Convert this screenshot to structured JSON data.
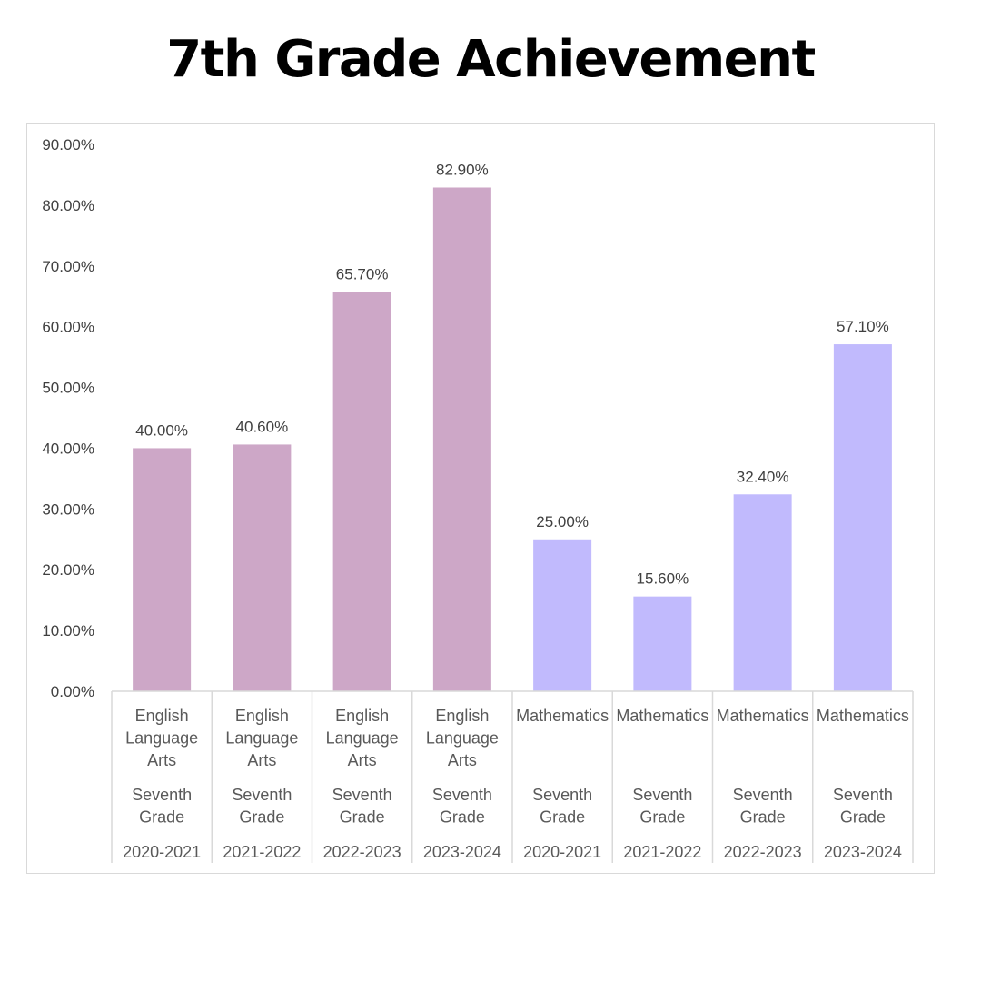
{
  "chart_data": {
    "type": "bar",
    "title": "7th Grade Achievement",
    "ylim": [
      0,
      90
    ],
    "yticks": [
      "0.00%",
      "10.00%",
      "20.00%",
      "30.00%",
      "40.00%",
      "50.00%",
      "60.00%",
      "70.00%",
      "80.00%",
      "90.00%"
    ],
    "grid": false,
    "categories": [
      {
        "subject": [
          "English",
          "Language",
          "Arts"
        ],
        "grade": [
          "Seventh",
          "Grade"
        ],
        "year": "2020-2021"
      },
      {
        "subject": [
          "English",
          "Language",
          "Arts"
        ],
        "grade": [
          "Seventh",
          "Grade"
        ],
        "year": "2021-2022"
      },
      {
        "subject": [
          "English",
          "Language",
          "Arts"
        ],
        "grade": [
          "Seventh",
          "Grade"
        ],
        "year": "2022-2023"
      },
      {
        "subject": [
          "English",
          "Language",
          "Arts"
        ],
        "grade": [
          "Seventh",
          "Grade"
        ],
        "year": "2023-2024"
      },
      {
        "subject": [
          "Mathematics"
        ],
        "grade": [
          "Seventh",
          "Grade"
        ],
        "year": "2020-2021"
      },
      {
        "subject": [
          "Mathematics"
        ],
        "grade": [
          "Seventh",
          "Grade"
        ],
        "year": "2021-2022"
      },
      {
        "subject": [
          "Mathematics"
        ],
        "grade": [
          "Seventh",
          "Grade"
        ],
        "year": "2022-2023"
      },
      {
        "subject": [
          "Mathematics"
        ],
        "grade": [
          "Seventh",
          "Grade"
        ],
        "year": "2023-2024"
      }
    ],
    "values": [
      40.0,
      40.6,
      65.7,
      82.9,
      25.0,
      15.6,
      32.4,
      57.1
    ],
    "data_labels": [
      "40.00%",
      "40.60%",
      "65.70%",
      "82.90%",
      "25.00%",
      "15.60%",
      "32.40%",
      "57.10%"
    ],
    "colors": [
      "#cda7c7",
      "#cda7c7",
      "#cda7c7",
      "#cda7c7",
      "#c1bafd",
      "#c1bafd",
      "#c1bafd",
      "#c1bafd"
    ],
    "axis_color": "#d9d9d9"
  }
}
